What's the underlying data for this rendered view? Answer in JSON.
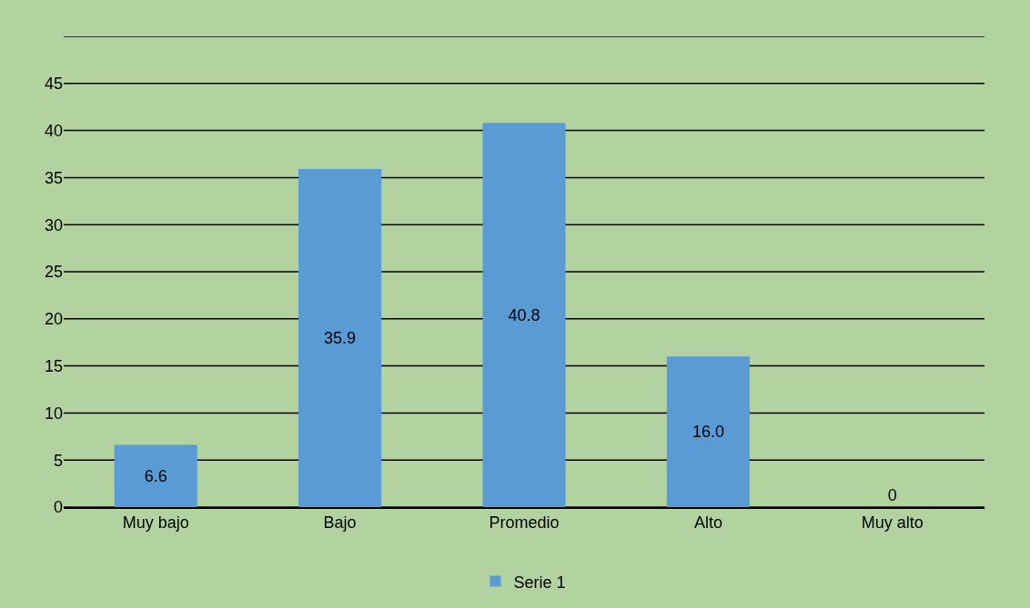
{
  "chart_data": {
    "type": "bar",
    "categories": [
      "Muy bajo",
      "Bajo",
      "Promedio",
      "Alto",
      "Muy alto"
    ],
    "series": [
      {
        "name": "Serie 1",
        "color": "#5b9bd5",
        "values": [
          6.6,
          35.9,
          40.8,
          16.0,
          0
        ],
        "value_labels": [
          "6.6",
          "35.9",
          "40.8",
          "16.0",
          "0"
        ]
      }
    ],
    "ylim": [
      0,
      50
    ],
    "yticks": [
      0,
      5,
      10,
      15,
      20,
      25,
      30,
      35,
      40,
      45,
      {
        "value": 50,
        "label": null
      }
    ],
    "grid": "y",
    "legend": "bottom"
  }
}
